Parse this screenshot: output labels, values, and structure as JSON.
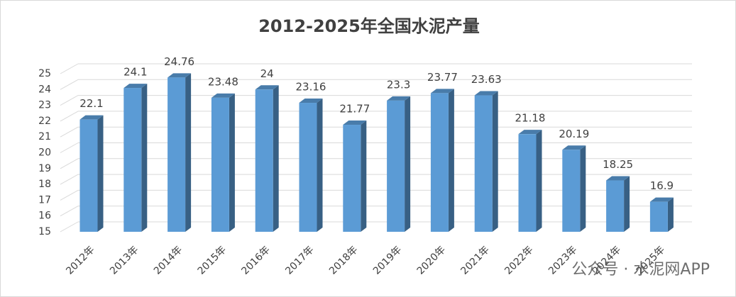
{
  "chart_data": {
    "type": "bar3d",
    "title": "2012-2025年全国水泥产量",
    "categories": [
      "2012年",
      "2013年",
      "2014年",
      "2015年",
      "2016年",
      "2017年",
      "2018年",
      "2019年",
      "2020年",
      "2021年",
      "2022年",
      "2023年",
      "2024年",
      "2025年"
    ],
    "values": [
      22.1,
      24.1,
      24.76,
      23.48,
      24,
      23.16,
      21.77,
      23.3,
      23.77,
      23.63,
      21.18,
      20.19,
      18.25,
      16.9
    ],
    "color": "#5b9bd5",
    "ylim": [
      15,
      25
    ],
    "yticks": [
      15,
      16,
      17,
      18,
      19,
      20,
      21,
      22,
      23,
      24,
      25
    ],
    "grid": true,
    "watermark": "公众号 · 水泥网APP"
  }
}
